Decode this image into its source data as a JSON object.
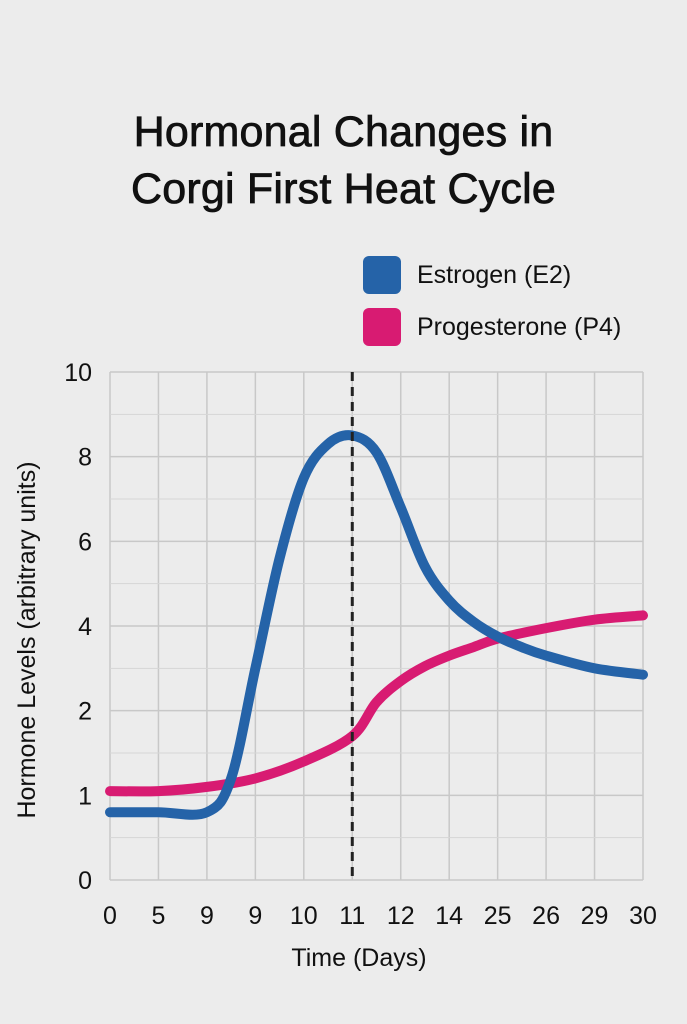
{
  "title_line1": "Hormonal Changes in",
  "title_line2": "Corgi First Heat Cycle",
  "chart_data": {
    "type": "line",
    "title": "Hormonal Changes in Corgi First Heat Cycle",
    "xlabel": "Time (Days)",
    "ylabel": "Hormone Levels (arbitrary units)",
    "x_tick_labels": [
      "0",
      "5",
      "9",
      "9",
      "10",
      "11",
      "12",
      "14",
      "25",
      "26",
      "29",
      "30"
    ],
    "y_tick_labels": [
      "0",
      "1",
      "2",
      "4",
      "6",
      "8",
      "10"
    ],
    "ylim": [
      0,
      10
    ],
    "grid": true,
    "legend_position": "top-right",
    "vline_at_tick": "11",
    "series": [
      {
        "name": "Estrogen (E2)",
        "color": "#2563a8",
        "points": [
          [
            0,
            0.8
          ],
          [
            1,
            0.8
          ],
          [
            2,
            0.8
          ],
          [
            2.5,
            1.2
          ],
          [
            3,
            3.0
          ],
          [
            3.5,
            5.6
          ],
          [
            4,
            7.5
          ],
          [
            4.5,
            8.3
          ],
          [
            5,
            8.5
          ],
          [
            5.5,
            8.1
          ],
          [
            6,
            6.8
          ],
          [
            6.5,
            5.4
          ],
          [
            7,
            4.6
          ],
          [
            7.5,
            4.1
          ],
          [
            8,
            3.75
          ],
          [
            8.5,
            3.5
          ],
          [
            9,
            3.3
          ],
          [
            10,
            3.0
          ],
          [
            11,
            2.85
          ]
        ]
      },
      {
        "name": "Progesterone (P4)",
        "color": "#d81b72",
        "points": [
          [
            0,
            1.05
          ],
          [
            1,
            1.05
          ],
          [
            2,
            1.1
          ],
          [
            3,
            1.2
          ],
          [
            4,
            1.4
          ],
          [
            5,
            1.7
          ],
          [
            5.5,
            2.2
          ],
          [
            6,
            2.7
          ],
          [
            6.5,
            3.05
          ],
          [
            7,
            3.3
          ],
          [
            7.5,
            3.5
          ],
          [
            8,
            3.7
          ],
          [
            9,
            3.95
          ],
          [
            10,
            4.15
          ],
          [
            11,
            4.25
          ]
        ]
      }
    ]
  }
}
